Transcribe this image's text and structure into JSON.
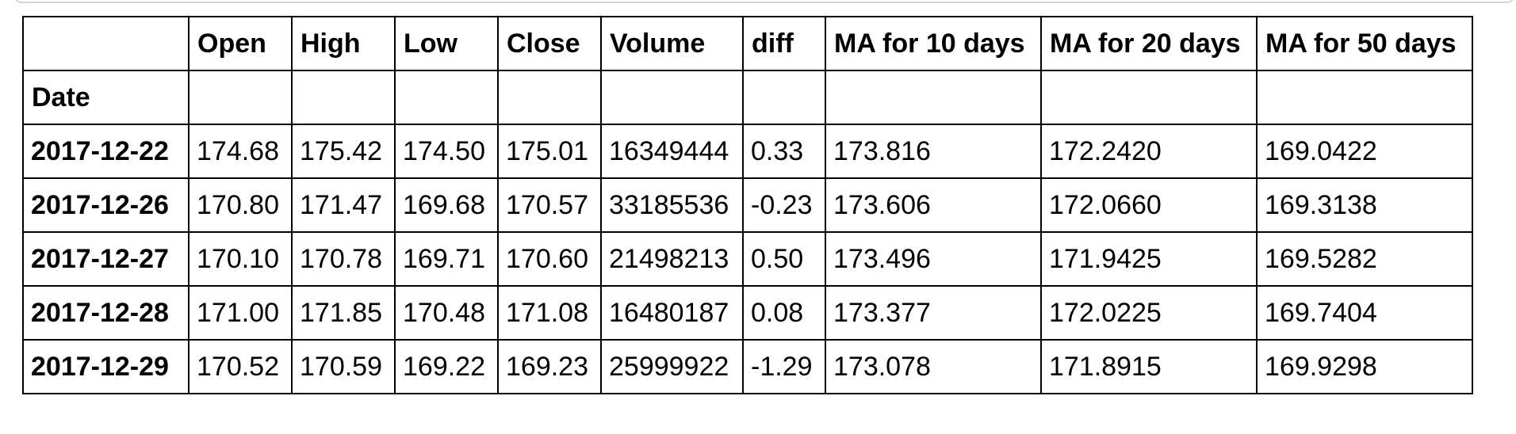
{
  "table": {
    "columns": [
      "Open",
      "High",
      "Low",
      "Close",
      "Volume",
      "diff",
      "MA for 10 days",
      "MA for 20 days",
      "MA for 50 days"
    ],
    "index_name": "Date",
    "rows": [
      {
        "date": "2017-12-22",
        "cells": [
          "174.68",
          "175.42",
          "174.50",
          "175.01",
          "16349444",
          "0.33",
          "173.816",
          "172.2420",
          "169.0422"
        ]
      },
      {
        "date": "2017-12-26",
        "cells": [
          "170.80",
          "171.47",
          "169.68",
          "170.57",
          "33185536",
          "-0.23",
          "173.606",
          "172.0660",
          "169.3138"
        ]
      },
      {
        "date": "2017-12-27",
        "cells": [
          "170.10",
          "170.78",
          "169.71",
          "170.60",
          "21498213",
          "0.50",
          "173.496",
          "171.9425",
          "169.5282"
        ]
      },
      {
        "date": "2017-12-28",
        "cells": [
          "171.00",
          "171.85",
          "170.48",
          "171.08",
          "16480187",
          "0.08",
          "173.377",
          "172.0225",
          "169.7404"
        ]
      },
      {
        "date": "2017-12-29",
        "cells": [
          "170.52",
          "170.59",
          "169.22",
          "169.23",
          "25999922",
          "-1.29",
          "173.078",
          "171.8915",
          "169.9298"
        ]
      }
    ]
  }
}
